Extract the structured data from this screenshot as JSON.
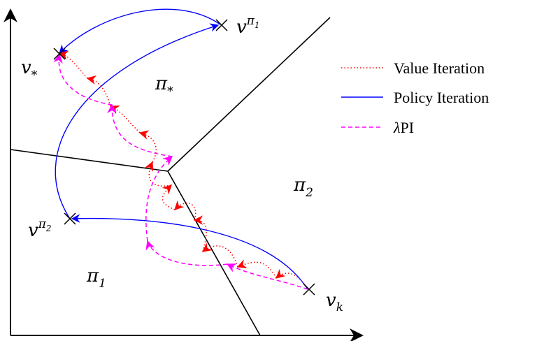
{
  "points": {
    "v_star": {
      "base": "v",
      "sub": "*",
      "sup": ""
    },
    "v_pi1": {
      "base": "v",
      "sub": "",
      "sup": "π",
      "sup_sub": "1"
    },
    "v_pi2": {
      "base": "v",
      "sub": "",
      "sup": "π",
      "sup_sub": "2"
    },
    "v_k": {
      "base": "v",
      "sub": "k",
      "sup": ""
    }
  },
  "regions": {
    "pi_star": {
      "base": "π",
      "sub": "*"
    },
    "pi1": {
      "base": "π",
      "sub": "1"
    },
    "pi2": {
      "base": "π",
      "sub": "2"
    }
  },
  "legend": {
    "value_iteration": {
      "label": "Value Iteration",
      "color": "#ff0000",
      "style": "dotted"
    },
    "policy_iteration": {
      "label": "Policy Iteration",
      "color": "#0000ff",
      "style": "solid"
    },
    "lambda_pi": {
      "lambda": "λ",
      "label": "PI",
      "color": "#ff00ff",
      "style": "dashed"
    }
  }
}
